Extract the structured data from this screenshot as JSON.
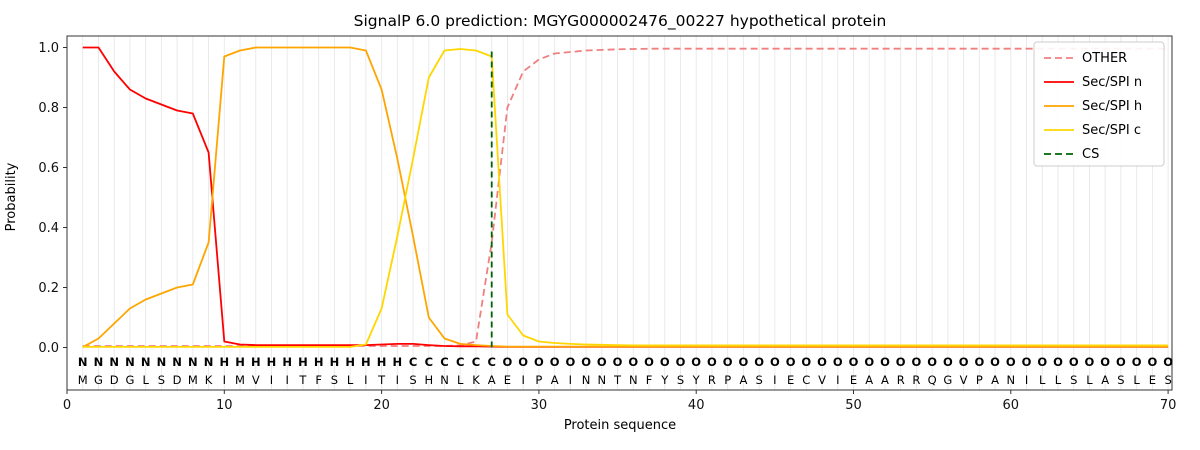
{
  "chart_data": {
    "type": "line",
    "title": "SignalP 6.0 prediction: MGYG000002476_00227 hypothetical protein",
    "xlabel": "Protein sequence",
    "ylabel": "Probability",
    "x_ticks": [
      "0",
      "10",
      "20",
      "30",
      "40",
      "50",
      "60",
      "70"
    ],
    "x_tick_values": [
      0,
      10,
      20,
      30,
      40,
      50,
      60,
      70
    ],
    "y_ticks": [
      "0.0",
      "0.2",
      "0.4",
      "0.6",
      "0.8",
      "1.0"
    ],
    "y_tick_values": [
      0.0,
      0.2,
      0.4,
      0.6,
      0.8,
      1.0
    ],
    "ylim": [
      0,
      1
    ],
    "grid": "vertical-per-residue",
    "legend_position": "upper-right",
    "sequence": "MGDGLSDMKIMVIITFSLITISHNLKAEIPAINNTNFYSYRPASIECVIEAARRQGVPANILLSLASLES",
    "region_labels": "NNNNNNNNNHHHHHHHHHHHHCCCCCCOOOOOOOOOOOOOOOOOOOOOOOOOOOOOOOOOOOOOOOOOOO",
    "region_colors": {
      "N": "#ff0000",
      "H": "#ffa500",
      "C": "#ffd700",
      "O": "#a0a0a0"
    },
    "sequence_color": "#000000",
    "series": [
      {
        "name": "OTHER",
        "color": "#f08080",
        "dashed": true,
        "values": [
          0.005,
          0.005,
          0.005,
          0.005,
          0.005,
          0.005,
          0.005,
          0.005,
          0.005,
          0.005,
          0.005,
          0.005,
          0.005,
          0.005,
          0.005,
          0.005,
          0.005,
          0.005,
          0.005,
          0.005,
          0.005,
          0.005,
          0.005,
          0.005,
          0.007,
          0.02,
          0.35,
          0.8,
          0.92,
          0.96,
          0.98,
          0.985,
          0.99,
          0.992,
          0.994,
          0.995,
          0.996,
          0.996,
          0.996,
          0.996,
          0.996,
          0.996,
          0.996,
          0.996,
          0.996,
          0.996,
          0.996,
          0.996,
          0.996,
          0.996,
          0.996,
          0.996,
          0.996,
          0.996,
          0.996,
          0.996,
          0.996,
          0.996,
          0.996,
          0.996,
          0.996,
          0.996,
          0.996,
          0.996,
          0.996,
          0.996,
          0.996,
          0.996,
          0.996,
          0.996
        ]
      },
      {
        "name": "Sec/SPI n",
        "color": "#ff0000",
        "dashed": false,
        "values": [
          1.0,
          1.0,
          0.92,
          0.86,
          0.83,
          0.81,
          0.79,
          0.78,
          0.65,
          0.02,
          0.01,
          0.008,
          0.008,
          0.008,
          0.008,
          0.008,
          0.008,
          0.008,
          0.008,
          0.01,
          0.012,
          0.012,
          0.008,
          0.005,
          0.004,
          0.004,
          0.003,
          0.002,
          0.002,
          0.002,
          0.002,
          0.002,
          0.002,
          0.002,
          0.002,
          0.002,
          0.002,
          0.002,
          0.002,
          0.002,
          0.002,
          0.002,
          0.002,
          0.002,
          0.002,
          0.002,
          0.002,
          0.002,
          0.002,
          0.002,
          0.002,
          0.002,
          0.002,
          0.002,
          0.002,
          0.002,
          0.002,
          0.002,
          0.002,
          0.002,
          0.002,
          0.002,
          0.002,
          0.002,
          0.002,
          0.002,
          0.002,
          0.002,
          0.002,
          0.002
        ]
      },
      {
        "name": "Sec/SPI h",
        "color": "#ffa500",
        "dashed": false,
        "values": [
          0.001,
          0.03,
          0.08,
          0.13,
          0.16,
          0.18,
          0.2,
          0.21,
          0.35,
          0.97,
          0.99,
          1.0,
          1.0,
          1.0,
          1.0,
          1.0,
          1.0,
          1.0,
          0.99,
          0.86,
          0.63,
          0.37,
          0.1,
          0.03,
          0.012,
          0.008,
          0.005,
          0.003,
          0.003,
          0.003,
          0.003,
          0.003,
          0.003,
          0.003,
          0.003,
          0.003,
          0.003,
          0.003,
          0.003,
          0.003,
          0.003,
          0.003,
          0.003,
          0.003,
          0.003,
          0.003,
          0.003,
          0.003,
          0.003,
          0.003,
          0.003,
          0.003,
          0.003,
          0.003,
          0.003,
          0.003,
          0.003,
          0.003,
          0.003,
          0.003,
          0.003,
          0.003,
          0.003,
          0.003,
          0.003,
          0.003,
          0.003,
          0.003,
          0.003,
          0.003
        ]
      },
      {
        "name": "Sec/SPI c",
        "color": "#ffd700",
        "dashed": false,
        "values": [
          0.002,
          0.002,
          0.002,
          0.002,
          0.002,
          0.002,
          0.002,
          0.002,
          0.002,
          0.002,
          0.002,
          0.002,
          0.002,
          0.002,
          0.002,
          0.002,
          0.002,
          0.002,
          0.01,
          0.13,
          0.37,
          0.63,
          0.9,
          0.99,
          0.995,
          0.99,
          0.97,
          0.11,
          0.04,
          0.02,
          0.015,
          0.012,
          0.01,
          0.009,
          0.008,
          0.007,
          0.007,
          0.007,
          0.007,
          0.007,
          0.007,
          0.007,
          0.007,
          0.007,
          0.007,
          0.007,
          0.007,
          0.007,
          0.007,
          0.007,
          0.007,
          0.007,
          0.007,
          0.007,
          0.007,
          0.007,
          0.007,
          0.007,
          0.007,
          0.007,
          0.007,
          0.007,
          0.007,
          0.007,
          0.007,
          0.007,
          0.007,
          0.007,
          0.007,
          0.007
        ]
      }
    ],
    "cs_marker": {
      "name": "CS",
      "x": 27,
      "color": "#006400",
      "dashed": true
    }
  }
}
